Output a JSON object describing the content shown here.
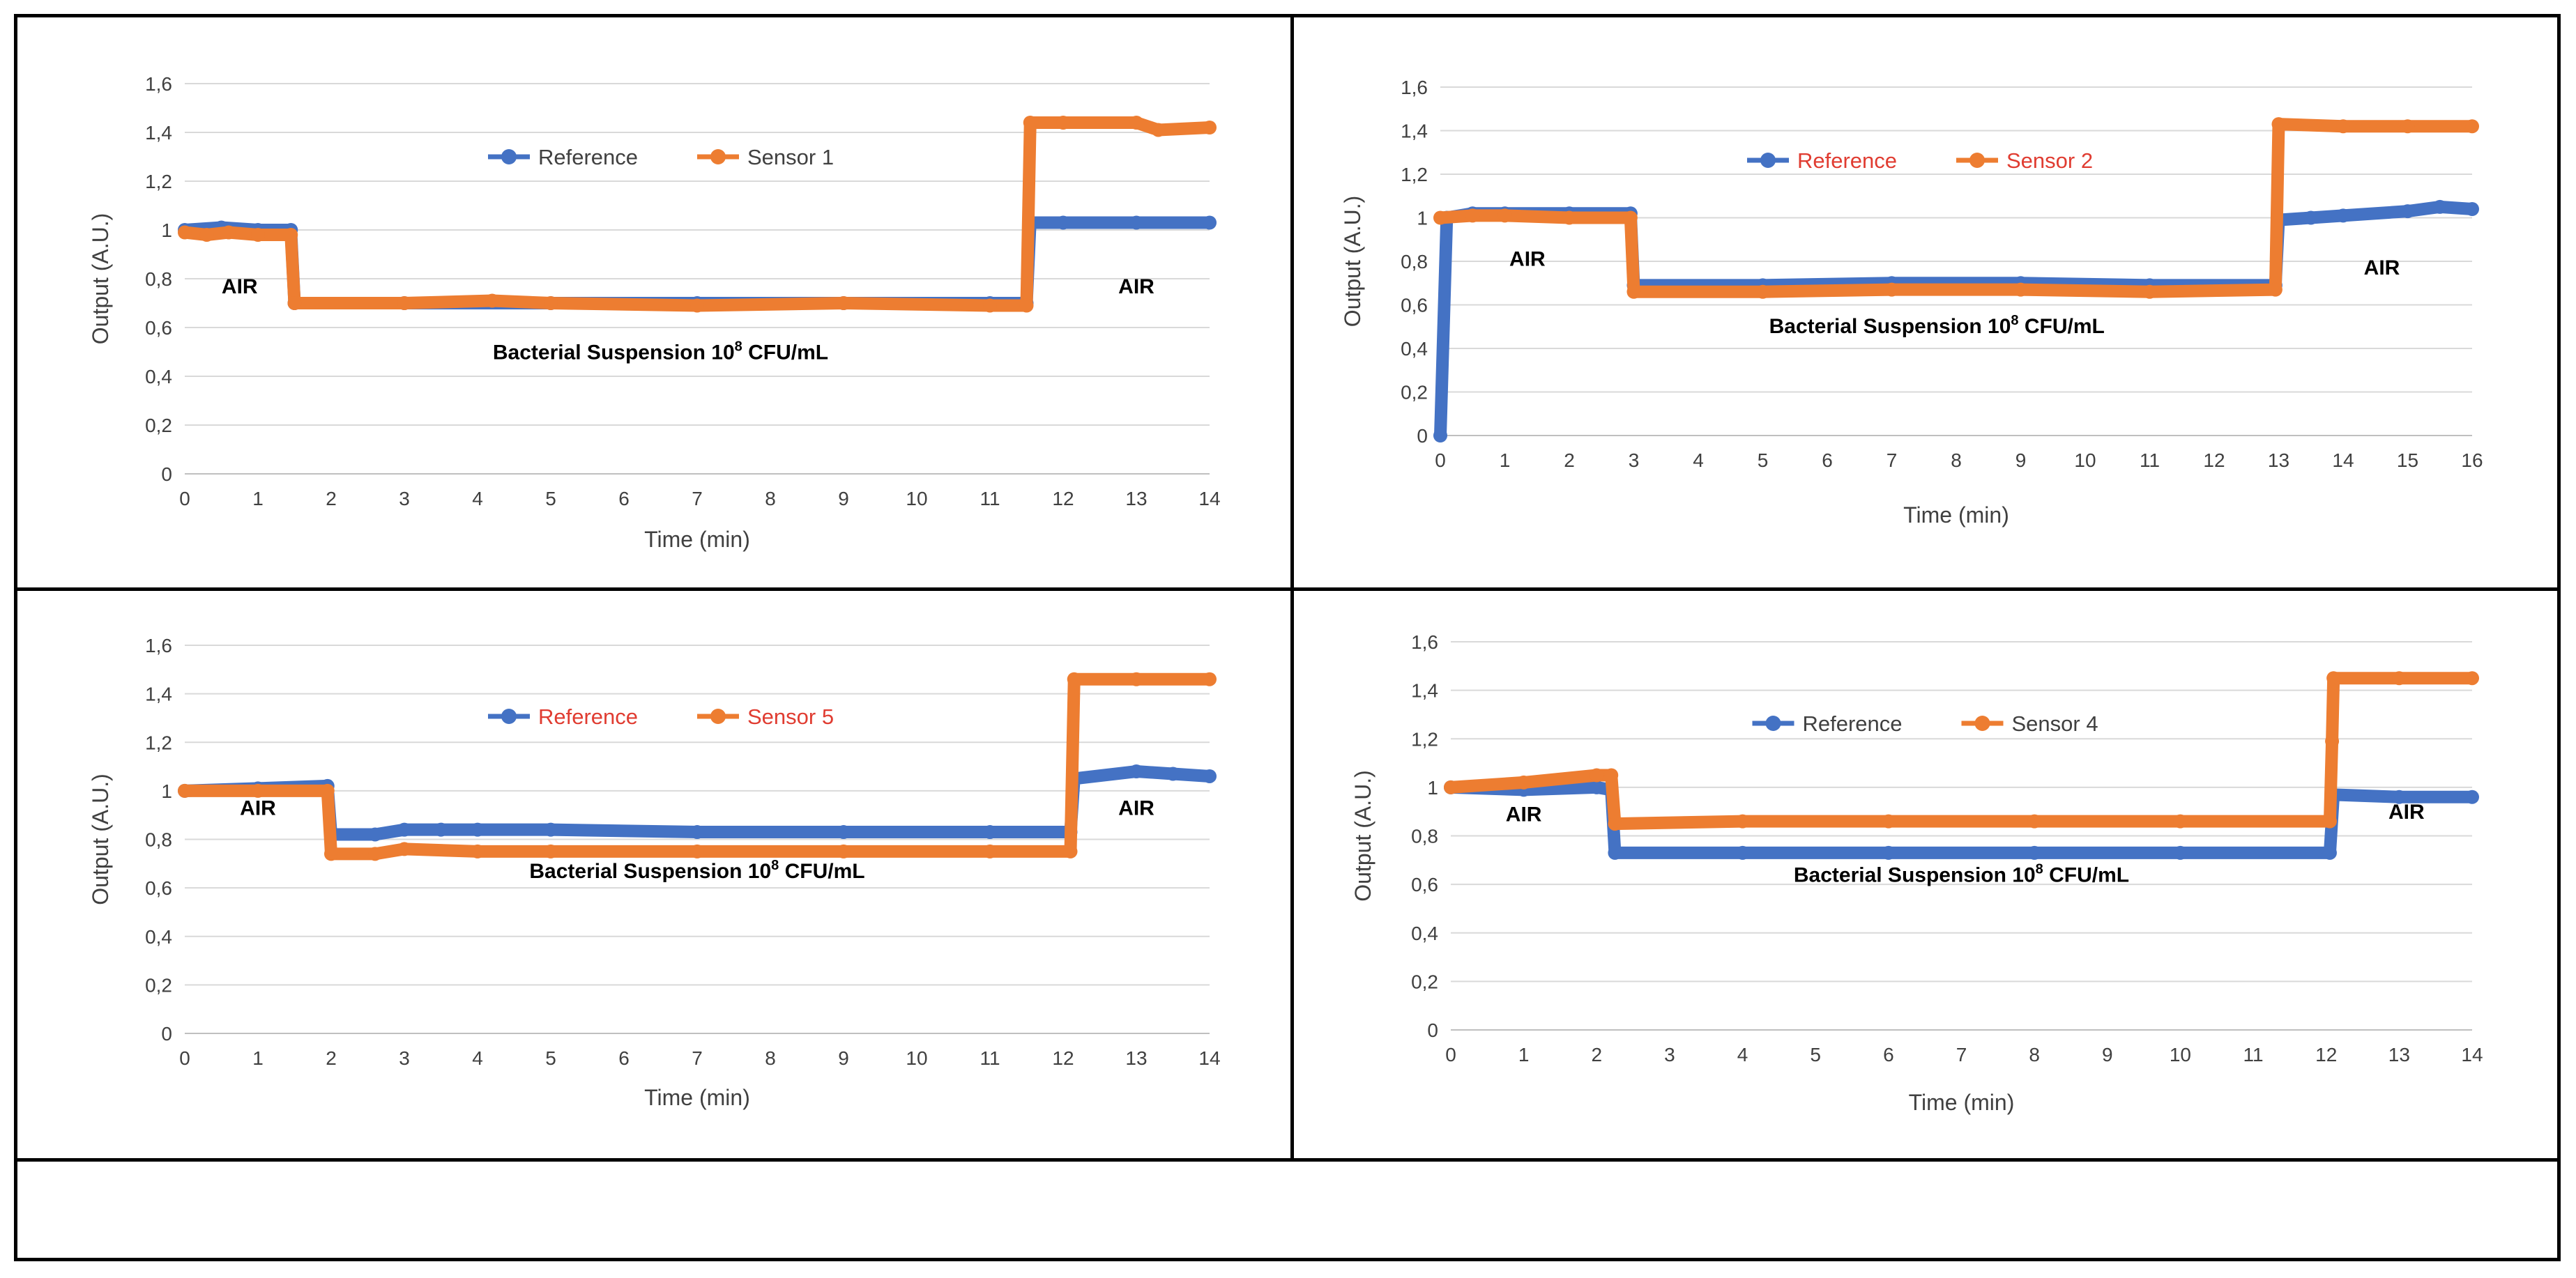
{
  "colors": {
    "reference": "#4472C4",
    "sensor": "#ED7D31",
    "grid": "#d9d9d9",
    "axis": "#bfbfbf",
    "text": "#404040",
    "red_legend": "#e03c31"
  },
  "chart_data": [
    {
      "type": "line",
      "title": "",
      "xlabel": "Time (min)",
      "ylabel": "Output (A.U.)",
      "xlim": [
        0,
        14
      ],
      "ylim": [
        0,
        1.6
      ],
      "x_ticks": [
        "0",
        "1",
        "2",
        "3",
        "4",
        "5",
        "6",
        "7",
        "8",
        "9",
        "10",
        "11",
        "12",
        "13",
        "14"
      ],
      "y_ticks": [
        "0",
        "0,2",
        "0,4",
        "0,6",
        "0,8",
        "1",
        "1,2",
        "1,4",
        "1,6"
      ],
      "legend": "top-center",
      "legend_color": "default",
      "annotations": [
        {
          "text": "AIR",
          "x": 0.75,
          "y": 0.74
        },
        {
          "text": "Bacterial Suspension 10",
          "sup": "8",
          "tail": " CFU/mL",
          "x": 6.5,
          "y": 0.47
        },
        {
          "text": "AIR",
          "x": 13.0,
          "y": 0.74
        }
      ],
      "series": [
        {
          "name": "Reference",
          "color": "#4472C4",
          "x": [
            0,
            0.5,
            1,
            1.45,
            1.5,
            3,
            5,
            7,
            9,
            11,
            11.5,
            11.55,
            12,
            13,
            14
          ],
          "y": [
            1.0,
            1.01,
            1.0,
            1.0,
            0.7,
            0.7,
            0.7,
            0.7,
            0.7,
            0.7,
            0.7,
            1.03,
            1.03,
            1.03,
            1.03
          ]
        },
        {
          "name": "Sensor 1",
          "color": "#ED7D31",
          "x": [
            0,
            0.3,
            0.6,
            1,
            1.45,
            1.5,
            3,
            4.2,
            5,
            7,
            9,
            11,
            11.5,
            11.55,
            12,
            13,
            13.3,
            14
          ],
          "y": [
            0.99,
            0.98,
            0.99,
            0.98,
            0.98,
            0.7,
            0.7,
            0.71,
            0.7,
            0.69,
            0.7,
            0.69,
            0.69,
            1.44,
            1.44,
            1.44,
            1.41,
            1.42
          ]
        }
      ]
    },
    {
      "type": "line",
      "title": "",
      "xlabel": "Time (min)",
      "ylabel": "Output (A.U.)",
      "xlim": [
        0,
        16
      ],
      "ylim": [
        0,
        1.6
      ],
      "x_ticks": [
        "0",
        "1",
        "2",
        "3",
        "4",
        "5",
        "6",
        "7",
        "8",
        "9",
        "10",
        "11",
        "12",
        "13",
        "14",
        "15",
        "16"
      ],
      "y_ticks": [
        "0",
        "0,2",
        "0,4",
        "0,6",
        "0,8",
        "1",
        "1,2",
        "1,4",
        "1,6"
      ],
      "legend": "top-center",
      "legend_color": "red",
      "annotations": [
        {
          "text": "AIR",
          "x": 1.35,
          "y": 0.78
        },
        {
          "text": "Bacterial Suspension 10",
          "sup": "8",
          "tail": " CFU/mL",
          "x": 7.7,
          "y": 0.47
        },
        {
          "text": "AIR",
          "x": 14.6,
          "y": 0.74
        }
      ],
      "series": [
        {
          "name": "Reference",
          "color": "#4472C4",
          "x": [
            0,
            0.1,
            0.5,
            1,
            2,
            2.95,
            3,
            5,
            7,
            9,
            11,
            12.95,
            13,
            13.5,
            14,
            15,
            15.5,
            16
          ],
          "y": [
            0,
            1.0,
            1.02,
            1.02,
            1.02,
            1.02,
            0.69,
            0.69,
            0.7,
            0.7,
            0.69,
            0.69,
            0.99,
            1.0,
            1.01,
            1.03,
            1.05,
            1.04
          ]
        },
        {
          "name": "Sensor 2",
          "color": "#ED7D31",
          "x": [
            0,
            0.5,
            1,
            2,
            2.95,
            3,
            5,
            7,
            9,
            11,
            12.95,
            13,
            14,
            15,
            16
          ],
          "y": [
            1.0,
            1.01,
            1.01,
            1.0,
            1.0,
            0.66,
            0.66,
            0.67,
            0.67,
            0.66,
            0.67,
            1.43,
            1.42,
            1.42,
            1.42
          ]
        }
      ]
    },
    {
      "type": "line",
      "title": "",
      "xlabel": "Time (min)",
      "ylabel": "Output (A.U.)",
      "xlim": [
        0,
        14
      ],
      "ylim": [
        0,
        1.6
      ],
      "x_ticks": [
        "0",
        "1",
        "2",
        "3",
        "4",
        "5",
        "6",
        "7",
        "8",
        "9",
        "10",
        "11",
        "12",
        "13",
        "14"
      ],
      "y_ticks": [
        "0",
        "0,2",
        "0,4",
        "0,6",
        "0,8",
        "1",
        "1,2",
        "1,4",
        "1,6"
      ],
      "legend": "top-center",
      "legend_color": "red",
      "annotations": [
        {
          "text": "AIR",
          "x": 1.0,
          "y": 0.9
        },
        {
          "text": "Bacterial Suspension 10",
          "sup": "8",
          "tail": " CFU/mL",
          "x": 7.0,
          "y": 0.64
        },
        {
          "text": "AIR",
          "x": 13.0,
          "y": 0.9
        }
      ],
      "series": [
        {
          "name": "Reference",
          "color": "#4472C4",
          "x": [
            0,
            1,
            1.95,
            2,
            2.6,
            3,
            3.5,
            4,
            5,
            7,
            9,
            11,
            12.1,
            12.15,
            13,
            13.5,
            14
          ],
          "y": [
            1.0,
            1.01,
            1.02,
            0.82,
            0.82,
            0.84,
            0.84,
            0.84,
            0.84,
            0.83,
            0.83,
            0.83,
            0.83,
            1.05,
            1.08,
            1.07,
            1.06
          ]
        },
        {
          "name": "Sensor 5",
          "color": "#ED7D31",
          "x": [
            0,
            1,
            1.95,
            2,
            2.6,
            3,
            4,
            5,
            7,
            9,
            11,
            12.1,
            12.15,
            13,
            14
          ],
          "y": [
            1.0,
            1.0,
            1.0,
            0.74,
            0.74,
            0.76,
            0.75,
            0.75,
            0.75,
            0.75,
            0.75,
            0.75,
            1.46,
            1.46,
            1.46
          ]
        }
      ]
    },
    {
      "type": "line",
      "title": "",
      "xlabel": "Time (min)",
      "ylabel": "Output (A.U.)",
      "xlim": [
        0,
        14
      ],
      "ylim": [
        0,
        1.6
      ],
      "x_ticks": [
        "0",
        "1",
        "2",
        "3",
        "4",
        "5",
        "6",
        "7",
        "8",
        "9",
        "10",
        "11",
        "12",
        "13",
        "14"
      ],
      "y_ticks": [
        "0",
        "0,2",
        "0,4",
        "0,6",
        "0,8",
        "1",
        "1,2",
        "1,4",
        "1,6"
      ],
      "legend": "top-center",
      "legend_color": "default",
      "annotations": [
        {
          "text": "AIR",
          "x": 1.0,
          "y": 0.86
        },
        {
          "text": "Bacterial Suspension 10",
          "sup": "8",
          "tail": " CFU/mL",
          "x": 7.0,
          "y": 0.61
        },
        {
          "text": "AIR",
          "x": 13.1,
          "y": 0.87
        }
      ],
      "series": [
        {
          "name": "Reference",
          "color": "#4472C4",
          "x": [
            0,
            1,
            2,
            2.2,
            2.25,
            4,
            6,
            8,
            10,
            12.05,
            12.1,
            13,
            14
          ],
          "y": [
            1.0,
            0.99,
            1.0,
            0.99,
            0.73,
            0.73,
            0.73,
            0.73,
            0.73,
            0.73,
            0.97,
            0.96,
            0.96
          ]
        },
        {
          "name": "Sensor 4",
          "color": "#ED7D31",
          "x": [
            0,
            1,
            2,
            2.2,
            2.25,
            4,
            6,
            8,
            10,
            12.05,
            12.08,
            12.1,
            13,
            14
          ],
          "y": [
            1.0,
            1.02,
            1.05,
            1.05,
            0.85,
            0.86,
            0.86,
            0.86,
            0.86,
            0.86,
            1.19,
            1.45,
            1.45,
            1.45
          ]
        }
      ]
    }
  ]
}
